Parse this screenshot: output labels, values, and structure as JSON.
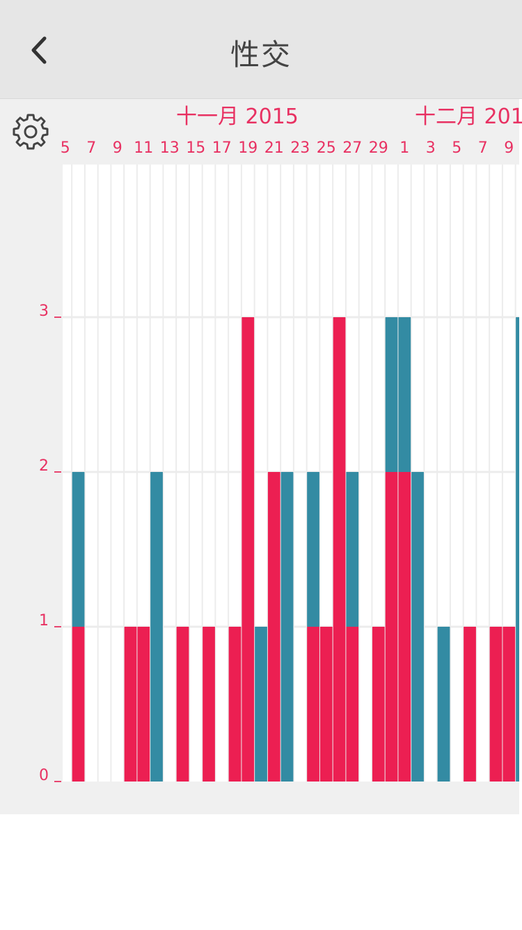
{
  "header": {
    "title": "性交",
    "back_icon": "chevron-left-icon",
    "settings_icon": "gear-icon"
  },
  "colors": {
    "red": "#ec1f52",
    "teal": "#338ba3",
    "label": "#e83162",
    "axis": "#e8456f",
    "grid": "#ececec"
  },
  "chart_data": {
    "type": "bar",
    "stacked": true,
    "months": [
      {
        "label": "十一月 2015",
        "start_day": 5
      },
      {
        "label": "十二月 201",
        "start_day": 1
      }
    ],
    "days": [
      5,
      6,
      7,
      8,
      9,
      10,
      11,
      12,
      13,
      14,
      15,
      16,
      17,
      18,
      19,
      20,
      21,
      22,
      23,
      24,
      25,
      26,
      27,
      28,
      29,
      30,
      1,
      2,
      3,
      4,
      5,
      6,
      7,
      8,
      9,
      10
    ],
    "tick_labels": [
      "5",
      "7",
      "9",
      "11",
      "13",
      "15",
      "17",
      "19",
      "21",
      "23",
      "25",
      "27",
      "29",
      "1",
      "3",
      "5",
      "7",
      "9"
    ],
    "series": [
      {
        "color": "red",
        "values": [
          0,
          1,
          0,
          0,
          0,
          1,
          1,
          0,
          0,
          1,
          0,
          1,
          0,
          1,
          3,
          0,
          2,
          0,
          0,
          1,
          1,
          3,
          1,
          0,
          1,
          2,
          2,
          0,
          0,
          0,
          0,
          1,
          0,
          1,
          1,
          0
        ]
      },
      {
        "color": "teal",
        "values": [
          0,
          1,
          0,
          0,
          0,
          0,
          0,
          2,
          0,
          0,
          0,
          0,
          0,
          0,
          0,
          1,
          0,
          2,
          0,
          1,
          0,
          0,
          1,
          0,
          0,
          1,
          1,
          2,
          0,
          1,
          0,
          0,
          0,
          0,
          0,
          3
        ]
      }
    ],
    "yticks": [
      0,
      1,
      2,
      3
    ],
    "ylim": [
      0,
      4
    ]
  }
}
